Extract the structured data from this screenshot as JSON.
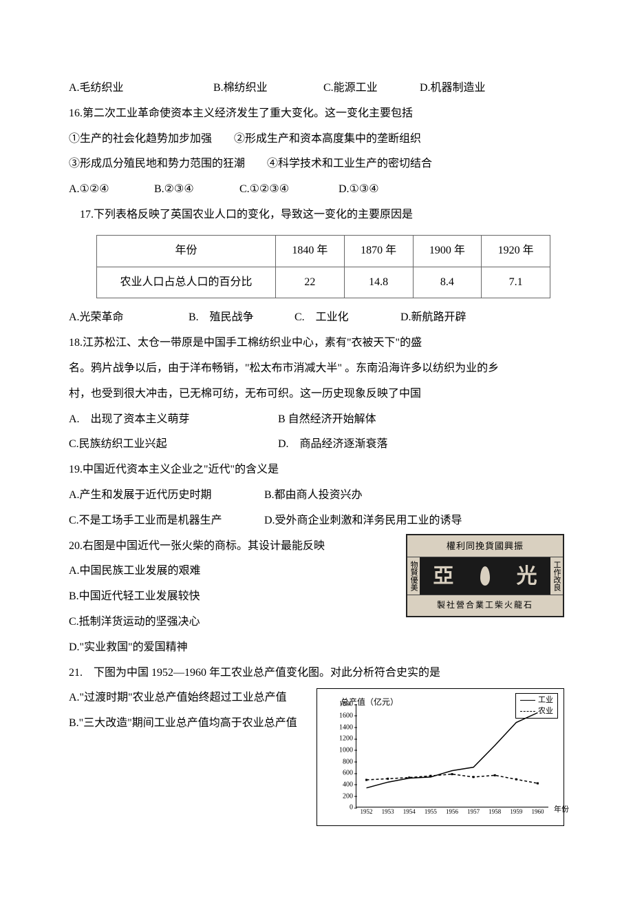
{
  "q15": {
    "optA": "A.毛纺织业",
    "optB": "B.棉纺织业",
    "optC": "C.能源工业",
    "optD": "D.机器制造业"
  },
  "q16": {
    "stem": "16.第二次工业革命使资本主义经济发生了重大变化。这一变化主要包括",
    "s1": "①生产的社会化趋势加步加强　　②形成生产和资本高度集中的垄断组织",
    "s2": "③形成瓜分殖民地和势力范围的狂潮　　④科学技术和工业生产的密切结合",
    "optA": "A.①②④",
    "optB": "B.②③④",
    "optC": "C.①②③④",
    "optD": "D.①③④"
  },
  "q17": {
    "stem": "17.下列表格反映了英国农业人口的变化，导致这一变化的主要原因是",
    "table": {
      "header": [
        "年份",
        "1840 年",
        "1870 年",
        "1900 年",
        "1920 年"
      ],
      "rowLabel": "农业人口占总人口的百分比",
      "values": [
        "22",
        "14.8",
        "8.4",
        "7.1"
      ]
    },
    "optA": "A.光荣革命",
    "optB": "B.　殖民战争",
    "optC": "C.　工业化",
    "optD": "D.新航路开辟"
  },
  "q18": {
    "l1": "18.江苏松江、太仓一带原是中国手工棉纺织业中心，素有\"衣被天下\"的盛",
    "l2": "名。鸦片战争以后，由于洋布畅销，\"松太布市消减大半\" 。东南沿海许多以纺织为业的乡",
    "l3": "村，也受到很大冲击，已无棉可纺，无布可织。这一历史现象反映了中国",
    "optA": "A.　出现了资本主义萌芽",
    "optB": "B 自然经济开始解体",
    "optC": "C.民族纺织工业兴起",
    "optD": "D.　商品经济逐渐衰落"
  },
  "q19": {
    "stem": "19.中国近代资本主义企业之\"近代\"的含义是",
    "optA": "A.产生和发展于近代历史时期",
    "optB": "B.都由商人投资兴办",
    "optC": "C.不是工场手工业而是机器生产",
    "optD": "D.受外商企业刺激和洋务民用工业的诱导"
  },
  "q20": {
    "stem": "20.右图是中国近代一张火柴的商标。其设计最能反映",
    "optA": "A.中国民族工业发展的艰难",
    "optB": "B.中国近代轻工业发展较快",
    "optC": "C.抵制洋货运动的坚强决心",
    "optD": "D.\"实业救国\"的爱国精神",
    "stamp": {
      "top": "權利同挽貨國興振",
      "left": "物賢優美",
      "midL": "亞",
      "midR": "光",
      "right": "工作改良",
      "bottom": "製社營合業工柴火龍石"
    }
  },
  "q21": {
    "stem": "21.　下图为中国 1952—1960 年工农业总产值变化图。对此分析符合史实的是",
    "optA": "A.\"过渡时期\"农业总产值始终超过工业总产值",
    "optB": "B.\"三大改造\"期间工业总产值均高于农业总产值",
    "chart": {
      "title": "总产值（亿元）",
      "legend": {
        "l1": "工业",
        "l2": "农业"
      },
      "ylim": [
        0,
        1800
      ],
      "yticks": [
        0,
        200,
        400,
        600,
        800,
        1000,
        1200,
        1400,
        1600,
        1800
      ],
      "xticks": [
        "1952",
        "1953",
        "1954",
        "1955",
        "1956",
        "1957",
        "1958",
        "1959",
        "1960"
      ],
      "xlabel": "年份",
      "industry": [
        340,
        440,
        510,
        530,
        640,
        700,
        1080,
        1480,
        1650
      ],
      "agri": [
        480,
        500,
        520,
        550,
        580,
        530,
        560,
        490,
        420
      ],
      "colors": {
        "line": "#000000",
        "bg": "#ffffff"
      }
    }
  }
}
